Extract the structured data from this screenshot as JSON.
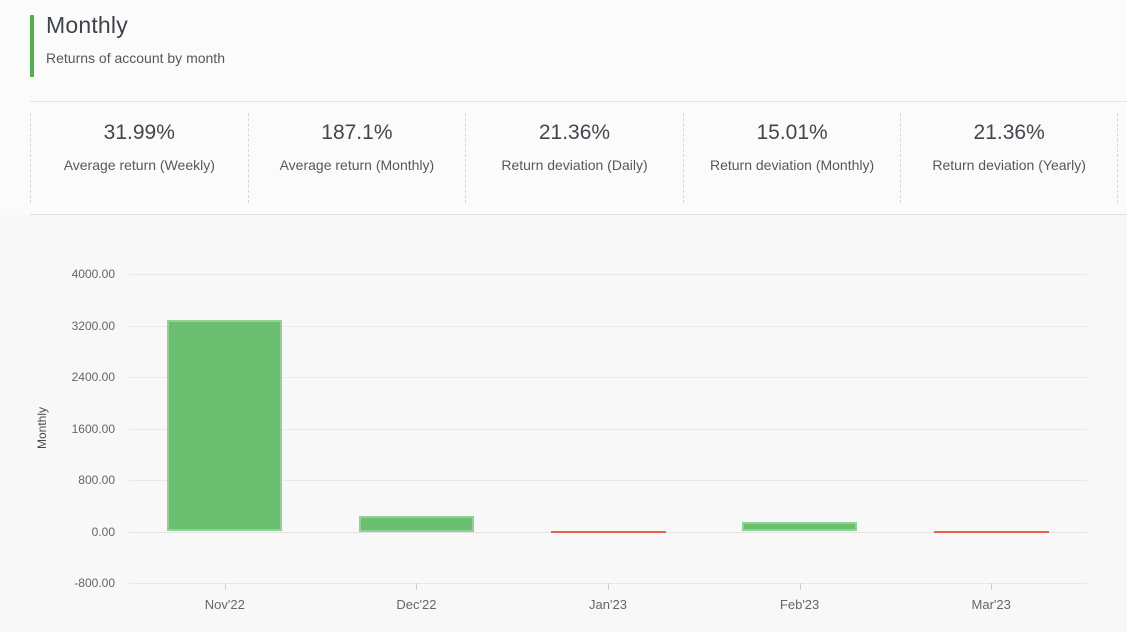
{
  "header": {
    "title": "Monthly",
    "subtitle": "Returns of account by month",
    "accent_color": "#4caf50"
  },
  "stats": [
    {
      "value": "31.99%",
      "label": "Average return (Weekly)"
    },
    {
      "value": "187.1%",
      "label": "Average return (Monthly)"
    },
    {
      "value": "21.36%",
      "label": "Return deviation (Daily)"
    },
    {
      "value": "15.01%",
      "label": "Return deviation (Monthly)"
    },
    {
      "value": "21.36%",
      "label": "Return deviation (Yearly)"
    }
  ],
  "chart_data": {
    "type": "bar",
    "title": "",
    "xlabel": "",
    "ylabel": "Monthly",
    "categories": [
      "Nov'22",
      "Dec'22",
      "Jan'23",
      "Feb'23",
      "Mar'23"
    ],
    "values": [
      3290,
      240,
      -15,
      150,
      -40
    ],
    "yticks": [
      4000,
      3200,
      2400,
      1600,
      800,
      0,
      -800
    ],
    "ytick_labels": [
      "4000.00",
      "3200.00",
      "2400.00",
      "1600.00",
      "800.00",
      "0.00",
      "-800.00"
    ],
    "ylim": [
      -800,
      4000
    ],
    "grid": true,
    "legend": "none",
    "positive_color": "#6abf70",
    "positive_border_color": "#92d095",
    "negative_color": "#e8604c"
  }
}
